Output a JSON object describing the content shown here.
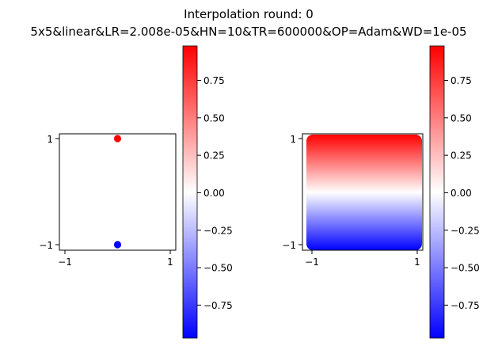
{
  "figure": {
    "title_line1": "Interpolation round: 0",
    "title_line2": "5x5&linear&LR=2.008e-05&HN=10&TR=600000&OP=Adam&WD=1e-05"
  },
  "colors": {
    "positive": "#ff0000",
    "zero": "#ffffff",
    "negative": "#0000ff",
    "colormap": "bwr"
  },
  "chart_data": [
    {
      "type": "scatter",
      "panel": "left",
      "xlim": [
        -1.1,
        1.1
      ],
      "ylim": [
        -1.1,
        1.1
      ],
      "xticks": [
        -1,
        1
      ],
      "xtick_labels": [
        "−1",
        "1"
      ],
      "yticks": [
        -1,
        1
      ],
      "ytick_labels": [
        "−1",
        "1"
      ],
      "points": [
        {
          "x": 0,
          "y": 1,
          "value": 1
        },
        {
          "x": 0,
          "y": -1,
          "value": -1
        }
      ],
      "colorbar": {
        "range": [
          -0.97,
          0.98
        ],
        "ticks": [
          0.75,
          0.5,
          0.25,
          0.0,
          -0.25,
          -0.5,
          -0.75
        ],
        "tick_labels": [
          "0.75",
          "0.50",
          "0.25",
          "0.00",
          "−0.25",
          "−0.50",
          "−0.75"
        ]
      }
    },
    {
      "type": "heatmap",
      "panel": "right",
      "xlim": [
        -1.05,
        1.05
      ],
      "ylim": [
        -1.05,
        1.05
      ],
      "xticks": [
        -1,
        1
      ],
      "xtick_labels": [
        "−1",
        "1"
      ],
      "yticks": [
        -1,
        1
      ],
      "ytick_labels": [
        "−1",
        "1"
      ],
      "extent": [
        -1,
        1,
        -1,
        1
      ],
      "field": "value varies with y only: approximately 1 at y=1, 0 near y=0, -1 at y=-1",
      "colorbar": {
        "range": [
          -0.97,
          0.98
        ],
        "ticks": [
          0.75,
          0.5,
          0.25,
          0.0,
          -0.25,
          -0.5,
          -0.75
        ],
        "tick_labels": [
          "0.75",
          "0.50",
          "0.25",
          "0.00",
          "−0.25",
          "−0.50",
          "−0.75"
        ]
      }
    }
  ]
}
